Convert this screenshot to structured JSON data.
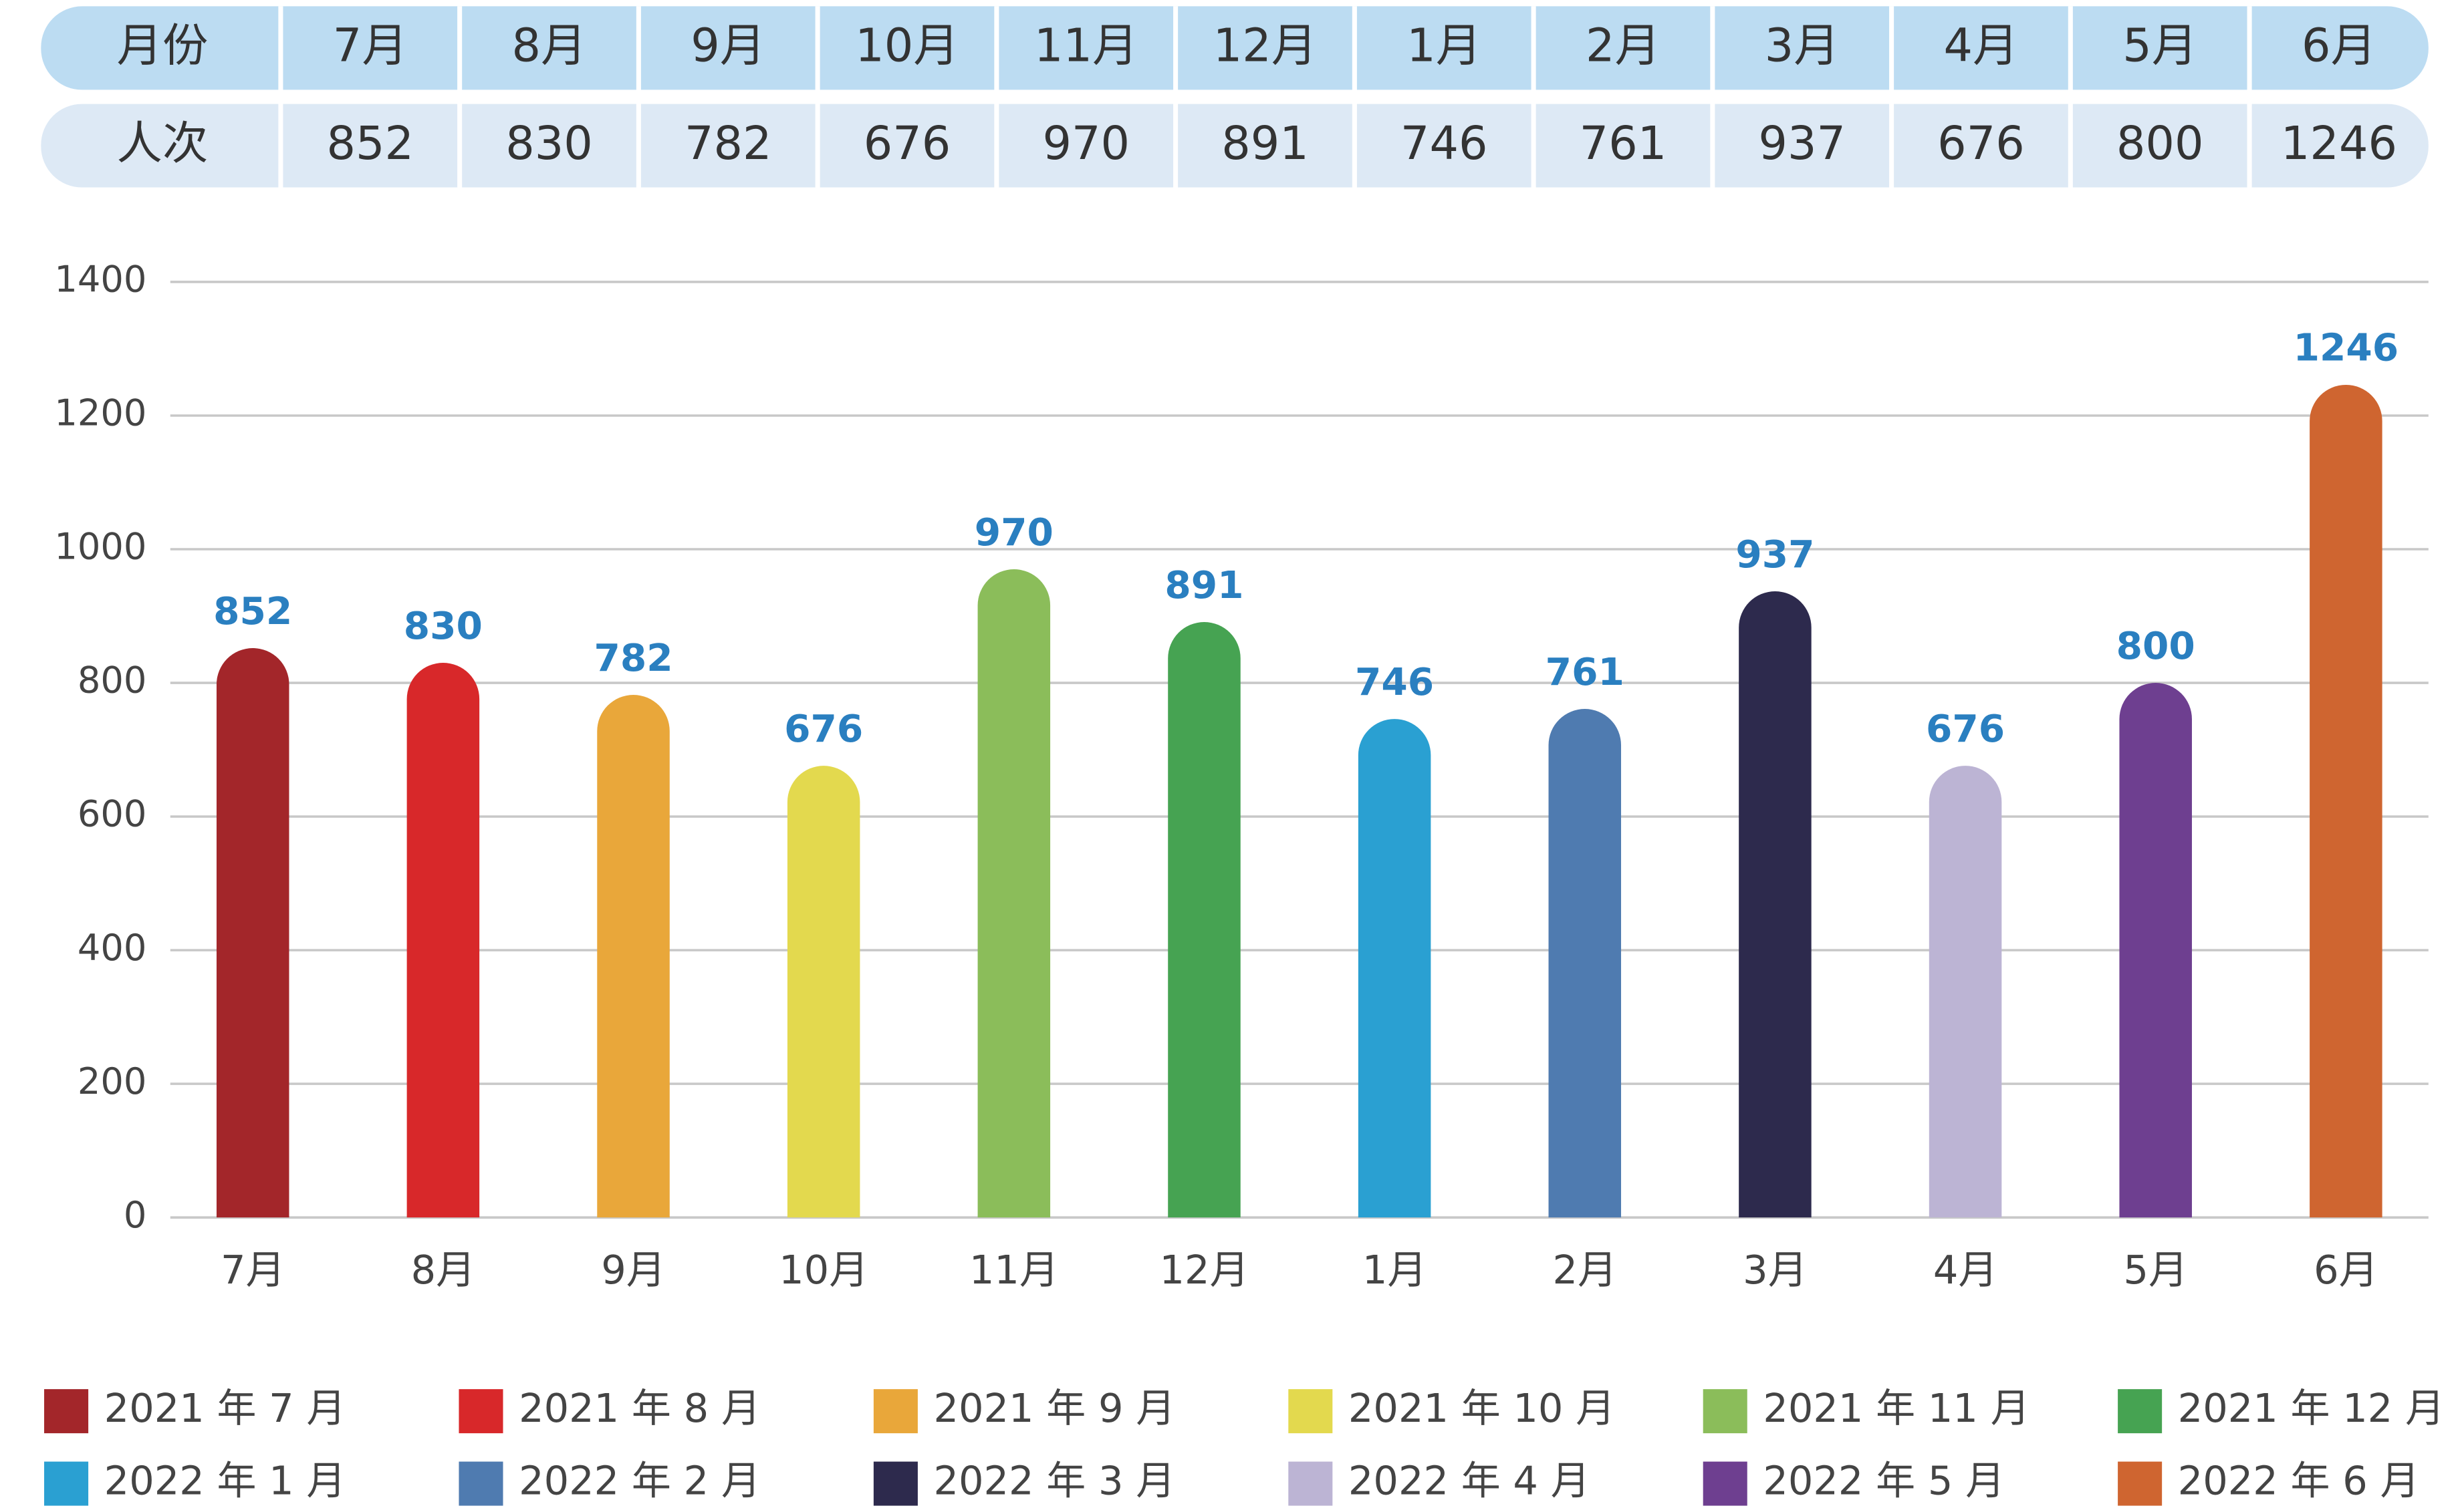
{
  "table": {
    "header_label": "月份",
    "row_label": "人次"
  },
  "chart_data": {
    "type": "bar",
    "categories": [
      "7月",
      "8月",
      "9月",
      "10月",
      "11月",
      "12月",
      "1月",
      "2月",
      "3月",
      "4月",
      "5月",
      "6月"
    ],
    "values": [
      852,
      830,
      782,
      676,
      970,
      891,
      746,
      761,
      937,
      676,
      800,
      1246
    ],
    "colors": [
      "#a3262a",
      "#d8282a",
      "#e9a73a",
      "#e3d94e",
      "#8bbd5a",
      "#46a352",
      "#2aa0d2",
      "#4f7bb0",
      "#2d2a4d",
      "#bcb4d4",
      "#6e3f90",
      "#cf6530"
    ],
    "legend": [
      "2021 年 7 月",
      "2021 年 8 月",
      "2021 年 9 月",
      "2021 年 10 月",
      "2021 年 11 月",
      "2021 年 12 月",
      "2022 年 1 月",
      "2022 年 2 月",
      "2022 年 3 月",
      "2022 年 4 月",
      "2022 年 5 月",
      "2022 年 6 月"
    ],
    "ylim": [
      0,
      1400
    ],
    "yticks": [
      0,
      200,
      400,
      600,
      800,
      1000,
      1200,
      1400
    ],
    "grid": true
  }
}
